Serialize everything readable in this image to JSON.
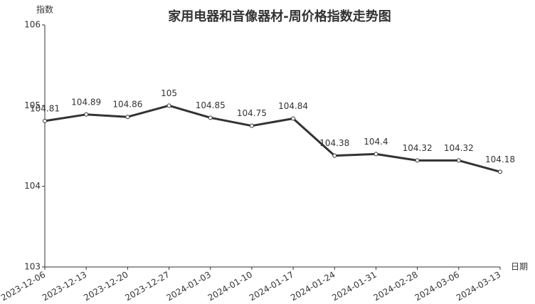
{
  "chart_data": {
    "type": "line",
    "title": "家用电器和音像器材-周价格指数走势图",
    "y_label": "指数",
    "x_label": "日期",
    "categories": [
      "2023-12-06",
      "2023-12-13",
      "2023-12-20",
      "2023-12-27",
      "2024-01-03",
      "2024-01-10",
      "2024-01-17",
      "2024-01-24",
      "2024-01-31",
      "2024-02-28",
      "2024-03-06",
      "2024-03-13"
    ],
    "values": [
      104.81,
      104.89,
      104.86,
      105,
      104.85,
      104.75,
      104.84,
      104.38,
      104.4,
      104.32,
      104.32,
      104.18
    ],
    "color": "#333333",
    "ylim": [
      103,
      106
    ],
    "yticks": [
      103,
      104,
      105,
      106
    ],
    "grid": false
  }
}
